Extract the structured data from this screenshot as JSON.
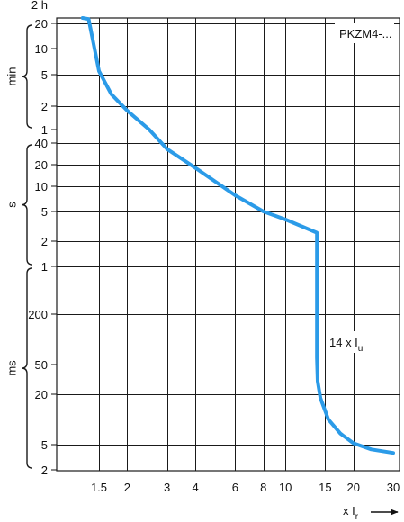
{
  "chart_data": {
    "type": "line",
    "title": "",
    "device_label": "PKZM4-...",
    "x_scale": "log",
    "xlim": [
      1.1,
      30
    ],
    "x_ticks": [
      {
        "value": 1.5,
        "label": "1.5"
      },
      {
        "value": 2,
        "label": "2"
      },
      {
        "value": 3,
        "label": "3"
      },
      {
        "value": 4,
        "label": "4"
      },
      {
        "value": 6,
        "label": "6"
      },
      {
        "value": 8,
        "label": "8"
      },
      {
        "value": 10,
        "label": "10"
      },
      {
        "value": 15,
        "label": "15"
      },
      {
        "value": 20,
        "label": "20"
      },
      {
        "value": 30,
        "label": "30"
      }
    ],
    "x_vertical_grid": [
      1.5,
      2,
      3,
      4,
      6,
      8,
      10,
      14,
      15,
      20
    ],
    "x_axis_label": {
      "prefix": "x I",
      "subscript": "r"
    },
    "y_scale": "log (piecewise by unit)",
    "y_ticks": [
      {
        "label": "2 h",
        "seconds": 7200
      },
      {
        "label": "20",
        "seconds": 1200
      },
      {
        "label": "10",
        "seconds": 600
      },
      {
        "label": "5",
        "seconds": 300
      },
      {
        "label": "2",
        "seconds": 120
      },
      {
        "label": "1",
        "seconds": 60
      },
      {
        "label": "40",
        "seconds": 40
      },
      {
        "label": "20",
        "seconds": 20
      },
      {
        "label": "10",
        "seconds": 10
      },
      {
        "label": "5",
        "seconds": 5
      },
      {
        "label": "2",
        "seconds": 2
      },
      {
        "label": "1",
        "seconds": 1
      },
      {
        "label": "200",
        "seconds": 0.2
      },
      {
        "label": "50",
        "seconds": 0.05
      },
      {
        "label": "20",
        "seconds": 0.02
      },
      {
        "label": "5",
        "seconds": 0.005
      },
      {
        "label": "2",
        "seconds": 0.002
      }
    ],
    "y_unit_groups": [
      {
        "label": "min",
        "from_seconds": 60,
        "to_seconds": 1200
      },
      {
        "label": "s",
        "from_seconds": 1,
        "to_seconds": 40
      },
      {
        "label": "ms",
        "from_seconds": 0.002,
        "to_seconds": 1
      }
    ],
    "grid": true,
    "series": [
      {
        "color": "#2b9be8",
        "points": [
          {
            "x": 1.27,
            "seconds": 7200
          },
          {
            "x": 1.35,
            "seconds": 1800
          },
          {
            "x": 1.5,
            "seconds": 330
          },
          {
            "x": 1.7,
            "seconds": 170
          },
          {
            "x": 2,
            "seconds": 105
          },
          {
            "x": 2.5,
            "seconds": 60
          },
          {
            "x": 3,
            "seconds": 33
          },
          {
            "x": 4,
            "seconds": 18
          },
          {
            "x": 6,
            "seconds": 7.8
          },
          {
            "x": 8,
            "seconds": 5.0
          },
          {
            "x": 10,
            "seconds": 3.9
          },
          {
            "x": 13.8,
            "seconds": 2.6
          },
          {
            "x": 13.8,
            "seconds": 0.06
          },
          {
            "x": 13.9,
            "seconds": 0.03
          },
          {
            "x": 14.3,
            "seconds": 0.018
          },
          {
            "x": 15.5,
            "seconds": 0.01
          },
          {
            "x": 17.5,
            "seconds": 0.0068
          },
          {
            "x": 20,
            "seconds": 0.0052
          },
          {
            "x": 24,
            "seconds": 0.0042
          },
          {
            "x": 30,
            "seconds": 0.0037
          }
        ]
      }
    ],
    "annotation": {
      "prefix": "14 x I",
      "subscript": "u"
    }
  }
}
